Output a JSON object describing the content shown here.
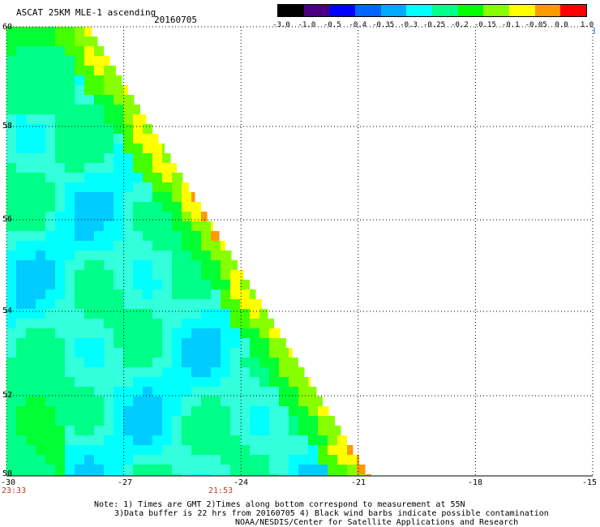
{
  "header": {
    "title": "ASCAT 25KM MLE-1 ascending",
    "date": "20160705"
  },
  "colorbar": {
    "labels": [
      "-3.0",
      "-1.0",
      "-0.5",
      "-0.4",
      "-0.35",
      "-0.3",
      "-0.25",
      "-0.2",
      "-0.15",
      "-0.1",
      "-0.05",
      "0.0",
      "1.0"
    ],
    "colors": [
      "#000000",
      "#4b0082",
      "#0000ff",
      "#0066ff",
      "#00aaff",
      "#00ffff",
      "#00ff88",
      "#00ff00",
      "#88ff00",
      "#ffff00",
      "#ff9900",
      "#ff0000"
    ]
  },
  "map": {
    "lon_range": [
      -30,
      -15
    ],
    "lat_range": [
      50,
      60
    ],
    "lat_ticks": [
      "60",
      "58",
      "56",
      "54",
      "52",
      "50"
    ],
    "lon_ticks": [
      "-30",
      "-27",
      "-24",
      "-21",
      "-18",
      "-15"
    ],
    "times": [
      {
        "lon": -30,
        "label": "23:33"
      },
      {
        "lon": -24,
        "label": "21:53"
      }
    ]
  },
  "notes": {
    "line1": "Note: 1) Times are GMT 2)Times along bottom correspond to measurement at 55N",
    "line2": "3)Data buffer is 22 hrs from 20160705 4) Black wind barbs indicate possible contamination",
    "line3": "NOAA/NESDIS/Center for Satellite Applications and Research"
  }
}
